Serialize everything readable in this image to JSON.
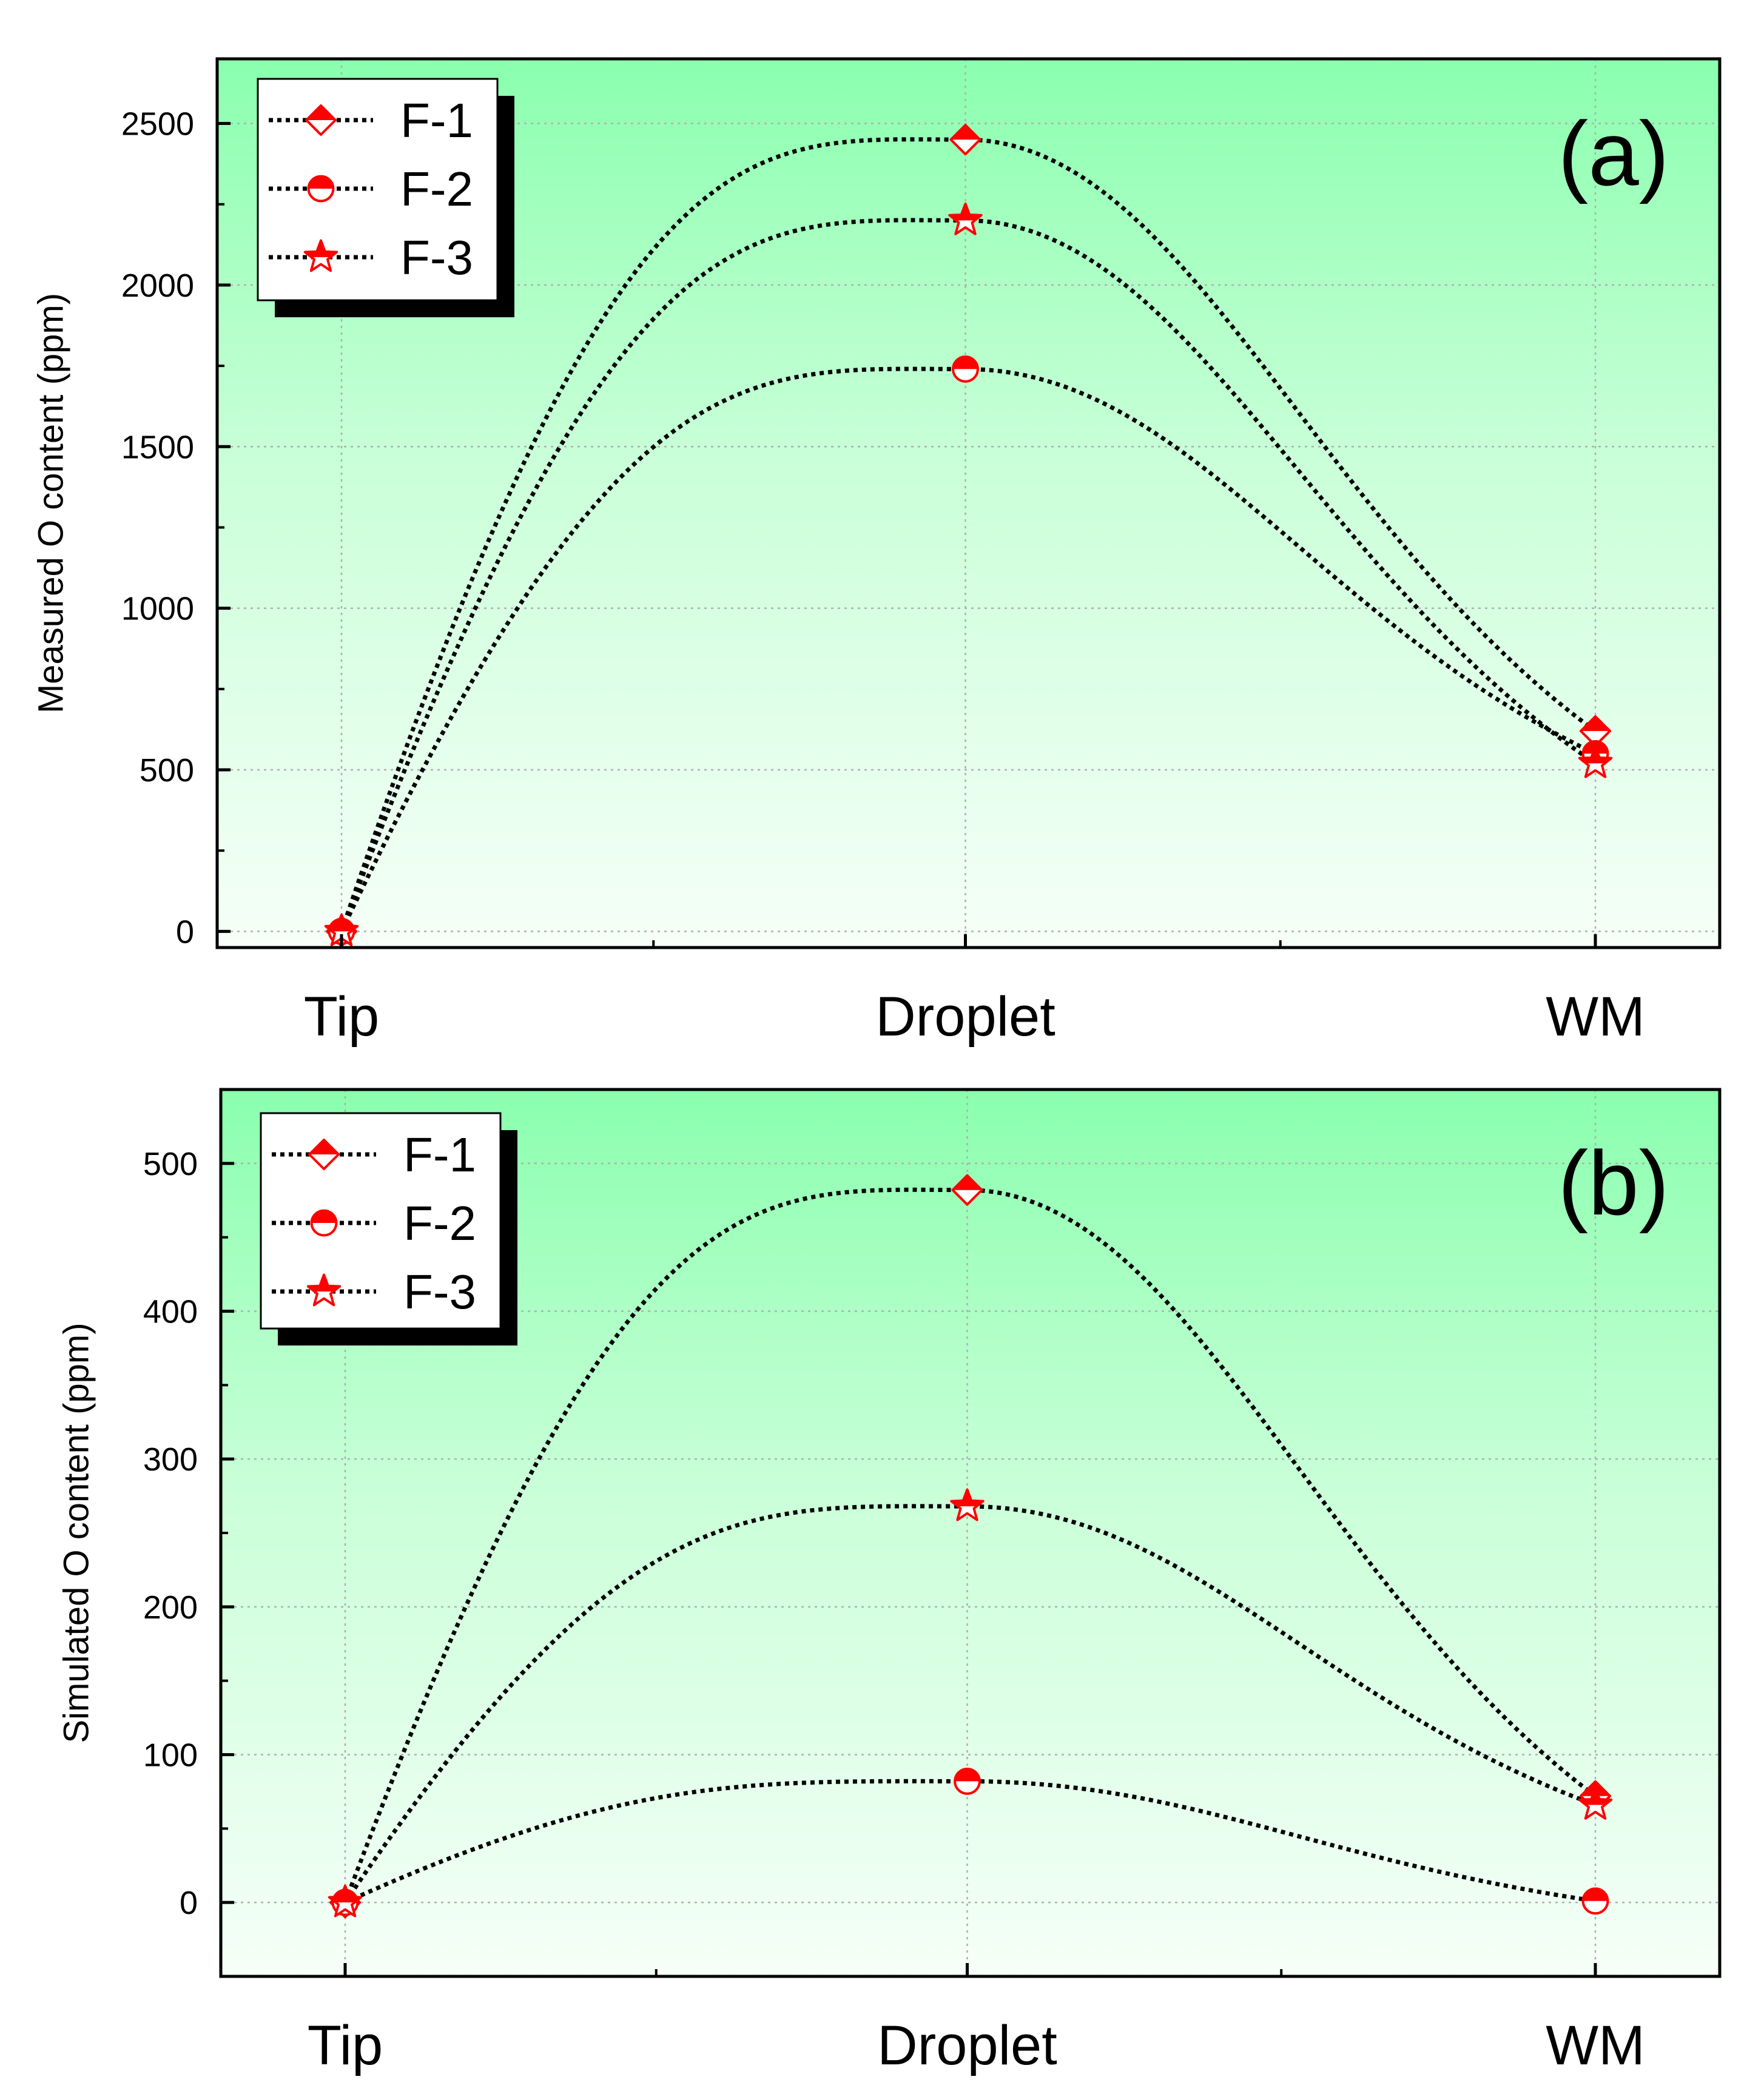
{
  "colors": {
    "marker": "#ff0000",
    "line": "#000000",
    "bg_top": "#8affae",
    "bg_bottom": "#f6fff8",
    "grid": "#b0b0b0"
  },
  "chart_data": [
    {
      "type": "line",
      "panel_label": "(a)",
      "title": "",
      "xlabel": "",
      "ylabel": "Measured O content (ppm)",
      "categories": [
        "Tip",
        "Droplet",
        "WM"
      ],
      "ylim": [
        -50,
        2700
      ],
      "yticks": [
        0,
        500,
        1000,
        1500,
        2000,
        2500
      ],
      "ytick_labels": [
        "0",
        "500",
        "1000",
        "1500",
        "2000",
        "2500"
      ],
      "grid": true,
      "legend_position": "top-left",
      "series": [
        {
          "name": "F-1",
          "marker": "diamond",
          "values": [
            0,
            2450,
            620
          ]
        },
        {
          "name": "F-2",
          "marker": "circle",
          "values": [
            0,
            1740,
            550
          ]
        },
        {
          "name": "F-3",
          "marker": "star",
          "values": [
            0,
            2200,
            520
          ]
        }
      ]
    },
    {
      "type": "line",
      "panel_label": "(b)",
      "title": "",
      "xlabel": "",
      "ylabel": "Simulated O content (ppm)",
      "categories": [
        "Tip",
        "Droplet",
        "WM"
      ],
      "ylim": [
        -50,
        550
      ],
      "yticks": [
        0,
        100,
        200,
        300,
        400,
        500
      ],
      "ytick_labels": [
        "0",
        "100",
        "200",
        "300",
        "400",
        "500"
      ],
      "grid": true,
      "legend_position": "top-left",
      "series": [
        {
          "name": "F-1",
          "marker": "diamond",
          "values": [
            0,
            482,
            72
          ]
        },
        {
          "name": "F-2",
          "marker": "circle",
          "values": [
            0,
            82,
            1
          ]
        },
        {
          "name": "F-3",
          "marker": "star",
          "values": [
            0,
            268,
            66
          ]
        }
      ]
    }
  ]
}
